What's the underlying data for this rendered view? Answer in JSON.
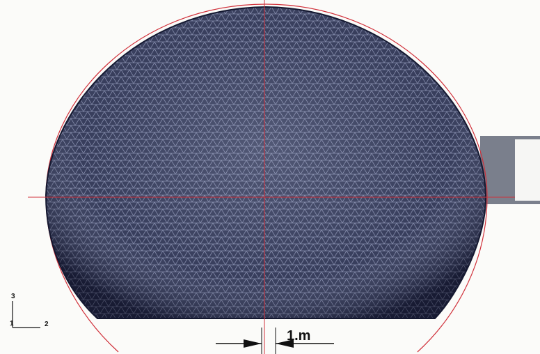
{
  "labels": {
    "scale": "1.m",
    "axis_3": "3",
    "axis_1": "1",
    "axis_2": "2"
  }
}
